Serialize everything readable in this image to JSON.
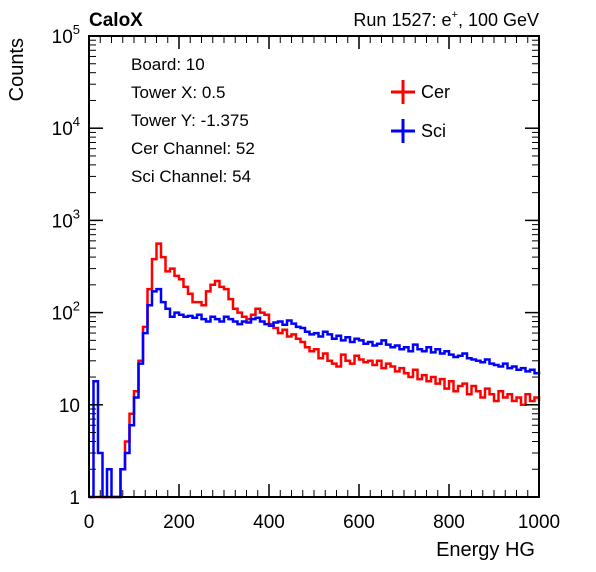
{
  "chart_data": {
    "type": "line",
    "title_left": "CaloX",
    "title_right_prefix": "Run 1527: e",
    "title_right_sup": "+",
    "title_right_suffix": ", 100 GeV",
    "xlabel": "Energy HG",
    "ylabel": "Counts",
    "xlim": [
      0,
      1000
    ],
    "ylim": [
      1,
      100000
    ],
    "y_scale": "log",
    "grid": false,
    "x_ticks": [
      "0",
      "200",
      "400",
      "600",
      "800",
      "1000"
    ],
    "y_ticks": [
      {
        "base": "1",
        "exp": ""
      },
      {
        "base": "10",
        "exp": ""
      },
      {
        "base": "10",
        "exp": "2"
      },
      {
        "base": "10",
        "exp": "3"
      },
      {
        "base": "10",
        "exp": "4"
      },
      {
        "base": "10",
        "exp": "5"
      }
    ],
    "info_lines": [
      "Board: 10",
      "Tower X: 0.5",
      "Tower Y: -1.375",
      "Cer Channel: 52",
      "Sci Channel: 54"
    ],
    "legend_position": "top-right",
    "series": [
      {
        "name": "Cer",
        "color": "#ff0000",
        "x": [
          0,
          10,
          20,
          30,
          40,
          50,
          60,
          70,
          80,
          90,
          100,
          110,
          120,
          130,
          140,
          150,
          160,
          170,
          180,
          190,
          200,
          210,
          220,
          230,
          240,
          250,
          260,
          270,
          280,
          290,
          300,
          310,
          320,
          330,
          340,
          350,
          360,
          370,
          380,
          390,
          400,
          410,
          420,
          430,
          440,
          450,
          460,
          470,
          480,
          490,
          500,
          510,
          520,
          530,
          540,
          550,
          560,
          570,
          580,
          590,
          600,
          610,
          620,
          630,
          640,
          650,
          660,
          670,
          680,
          690,
          700,
          710,
          720,
          730,
          740,
          750,
          760,
          770,
          780,
          790,
          800,
          810,
          820,
          830,
          840,
          850,
          860,
          870,
          880,
          890,
          900,
          910,
          920,
          930,
          940,
          950,
          960,
          970,
          980,
          990,
          1000
        ],
        "values": [
          1,
          1,
          1,
          1,
          1,
          1,
          1,
          2,
          4,
          8,
          14,
          30,
          70,
          180,
          380,
          560,
          400,
          280,
          300,
          250,
          230,
          190,
          160,
          130,
          130,
          120,
          170,
          200,
          220,
          190,
          180,
          140,
          110,
          100,
          90,
          85,
          95,
          110,
          100,
          95,
          75,
          68,
          60,
          65,
          55,
          58,
          52,
          48,
          42,
          38,
          40,
          32,
          36,
          30,
          28,
          26,
          35,
          30,
          28,
          34,
          31,
          29,
          30,
          27,
          30,
          25,
          28,
          26,
          23,
          25,
          22,
          20,
          24,
          19,
          21,
          18,
          20,
          17,
          19,
          15,
          18,
          14,
          16,
          17,
          13,
          16,
          14,
          12,
          15,
          13,
          11,
          14,
          12,
          13,
          11,
          12,
          10,
          13,
          11,
          12,
          11
        ]
      },
      {
        "name": "Sci",
        "color": "#0000ff",
        "x": [
          0,
          10,
          20,
          30,
          40,
          50,
          60,
          70,
          80,
          90,
          100,
          110,
          120,
          130,
          140,
          150,
          160,
          170,
          180,
          190,
          200,
          210,
          220,
          230,
          240,
          250,
          260,
          270,
          280,
          290,
          300,
          310,
          320,
          330,
          340,
          350,
          360,
          370,
          380,
          390,
          400,
          410,
          420,
          430,
          440,
          450,
          460,
          470,
          480,
          490,
          500,
          510,
          520,
          530,
          540,
          550,
          560,
          570,
          580,
          590,
          600,
          610,
          620,
          630,
          640,
          650,
          660,
          670,
          680,
          690,
          700,
          710,
          720,
          730,
          740,
          750,
          760,
          770,
          780,
          790,
          800,
          810,
          820,
          830,
          840,
          850,
          860,
          870,
          880,
          890,
          900,
          910,
          920,
          930,
          940,
          950,
          960,
          970,
          980,
          990,
          1000
        ],
        "values": [
          1,
          18,
          3,
          1,
          2,
          1,
          1,
          2,
          3,
          6,
          12,
          28,
          60,
          120,
          170,
          180,
          130,
          110,
          90,
          100,
          95,
          90,
          92,
          88,
          95,
          85,
          80,
          90,
          85,
          80,
          90,
          85,
          80,
          75,
          80,
          78,
          85,
          88,
          80,
          75,
          72,
          78,
          80,
          74,
          82,
          76,
          70,
          68,
          62,
          58,
          60,
          55,
          62,
          58,
          52,
          56,
          50,
          54,
          48,
          52,
          50,
          46,
          48,
          44,
          46,
          50,
          45,
          42,
          44,
          40,
          42,
          38,
          45,
          40,
          38,
          42,
          37,
          40,
          36,
          38,
          35,
          33,
          34,
          36,
          32,
          31,
          30,
          29,
          31,
          28,
          27,
          26,
          28,
          25,
          26,
          24,
          25,
          23,
          24,
          22,
          23
        ]
      }
    ]
  }
}
